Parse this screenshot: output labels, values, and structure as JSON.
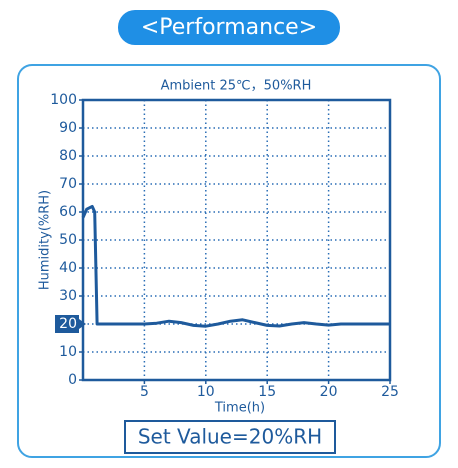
{
  "header": {
    "title": "<Performance>"
  },
  "chart_data": {
    "type": "line",
    "title": "Ambient 25℃，50%RH",
    "xlabel": "Time(h)",
    "ylabel": "Humidity(%RH)",
    "annotation": "Set Value=20%RH",
    "set_value": 20,
    "x": [
      0,
      0.3,
      0.75,
      0.95,
      1.05,
      1.15,
      2,
      3,
      4,
      5,
      6,
      7,
      8,
      9,
      10,
      11,
      12,
      13,
      14,
      15,
      16,
      17,
      18,
      19,
      20,
      21,
      22,
      23,
      24,
      25
    ],
    "values": [
      58,
      61,
      62,
      60,
      40,
      20,
      20,
      20,
      20,
      20,
      20.3,
      21,
      20.5,
      19.5,
      19.2,
      20,
      21,
      21.5,
      20.5,
      19.5,
      19.3,
      20,
      20.5,
      20,
      19.6,
      20,
      20,
      20,
      20,
      20
    ],
    "color": "#1e5a9c",
    "xlim": [
      0,
      25
    ],
    "ylim": [
      0,
      100
    ],
    "xticks": [
      5,
      10,
      15,
      20,
      25
    ],
    "yticks": [
      0,
      10,
      20,
      30,
      40,
      50,
      60,
      70,
      80,
      90,
      100
    ],
    "grid": true
  }
}
